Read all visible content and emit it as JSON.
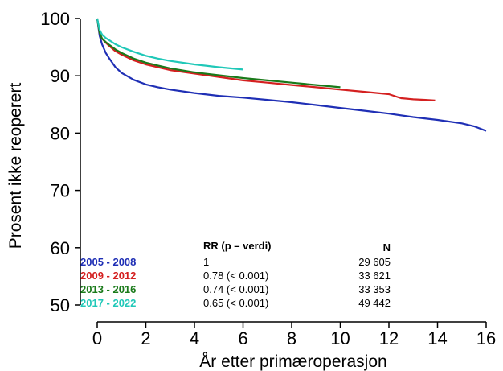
{
  "chart_data": {
    "type": "line",
    "title": "",
    "xlabel": "År etter primæroperasjon",
    "ylabel": "Prosent ikke reoperert",
    "xlim": [
      0,
      16
    ],
    "ylim": [
      50,
      100
    ],
    "xticks": [
      "0",
      "2",
      "4",
      "6",
      "8",
      "10",
      "12",
      "14",
      "16"
    ],
    "yticks": [
      "50",
      "60",
      "70",
      "80",
      "90",
      "100"
    ],
    "grid": false,
    "legend_position": "bottom-left",
    "legend_headers": {
      "rr": "RR (p – verdi)",
      "n": "N"
    },
    "series": [
      {
        "name": "2005 - 2008",
        "color": "#1f2fb5",
        "rr": "1",
        "n": "29 605",
        "x": [
          0,
          0.1,
          0.2,
          0.35,
          0.5,
          0.75,
          1,
          1.5,
          2,
          2.5,
          3,
          4,
          5,
          6,
          7,
          8,
          9,
          10,
          11,
          12,
          13,
          14,
          15,
          15.5,
          16
        ],
        "y": [
          100,
          97,
          95.5,
          94,
          93,
          91.5,
          90.5,
          89.3,
          88.5,
          88,
          87.6,
          87,
          86.5,
          86.2,
          85.8,
          85.4,
          84.9,
          84.4,
          83.9,
          83.4,
          82.8,
          82.3,
          81.7,
          81.2,
          80.4
        ]
      },
      {
        "name": "2009 - 2012",
        "color": "#d42020",
        "rr": "0.78 (< 0.001)",
        "n": "33 621",
        "x": [
          0,
          0.1,
          0.2,
          0.35,
          0.5,
          0.75,
          1,
          1.5,
          2,
          2.5,
          3,
          4,
          5,
          6,
          7,
          8,
          9,
          10,
          11,
          12,
          12.5,
          13,
          13.5,
          13.9
        ],
        "y": [
          100,
          97.5,
          96.5,
          95.8,
          95.2,
          94.3,
          93.7,
          92.7,
          92,
          91.5,
          91,
          90.4,
          89.8,
          89.2,
          88.8,
          88.4,
          88,
          87.6,
          87.2,
          86.8,
          86.1,
          85.9,
          85.8,
          85.7
        ]
      },
      {
        "name": "2013 - 2016",
        "color": "#1a7a1a",
        "rr": "0.74 (< 0.001)",
        "n": "33 353",
        "x": [
          0,
          0.1,
          0.2,
          0.35,
          0.5,
          0.75,
          1,
          1.5,
          2,
          2.5,
          3,
          4,
          5,
          6,
          7,
          8,
          9,
          10
        ],
        "y": [
          100,
          97.5,
          96.5,
          95.9,
          95.4,
          94.6,
          94,
          93,
          92.3,
          91.8,
          91.3,
          90.6,
          90.1,
          89.6,
          89.2,
          88.8,
          88.4,
          88
        ]
      },
      {
        "name": "2017 - 2022",
        "color": "#20c8b8",
        "rr": "0.65 (< 0.001)",
        "n": "49 442",
        "x": [
          0,
          0.1,
          0.2,
          0.35,
          0.5,
          0.75,
          1,
          1.5,
          2,
          2.5,
          3,
          4,
          5,
          6
        ],
        "y": [
          100,
          98,
          97.2,
          96.6,
          96.2,
          95.5,
          95,
          94.2,
          93.5,
          93,
          92.6,
          92,
          91.5,
          91.1
        ]
      }
    ]
  }
}
